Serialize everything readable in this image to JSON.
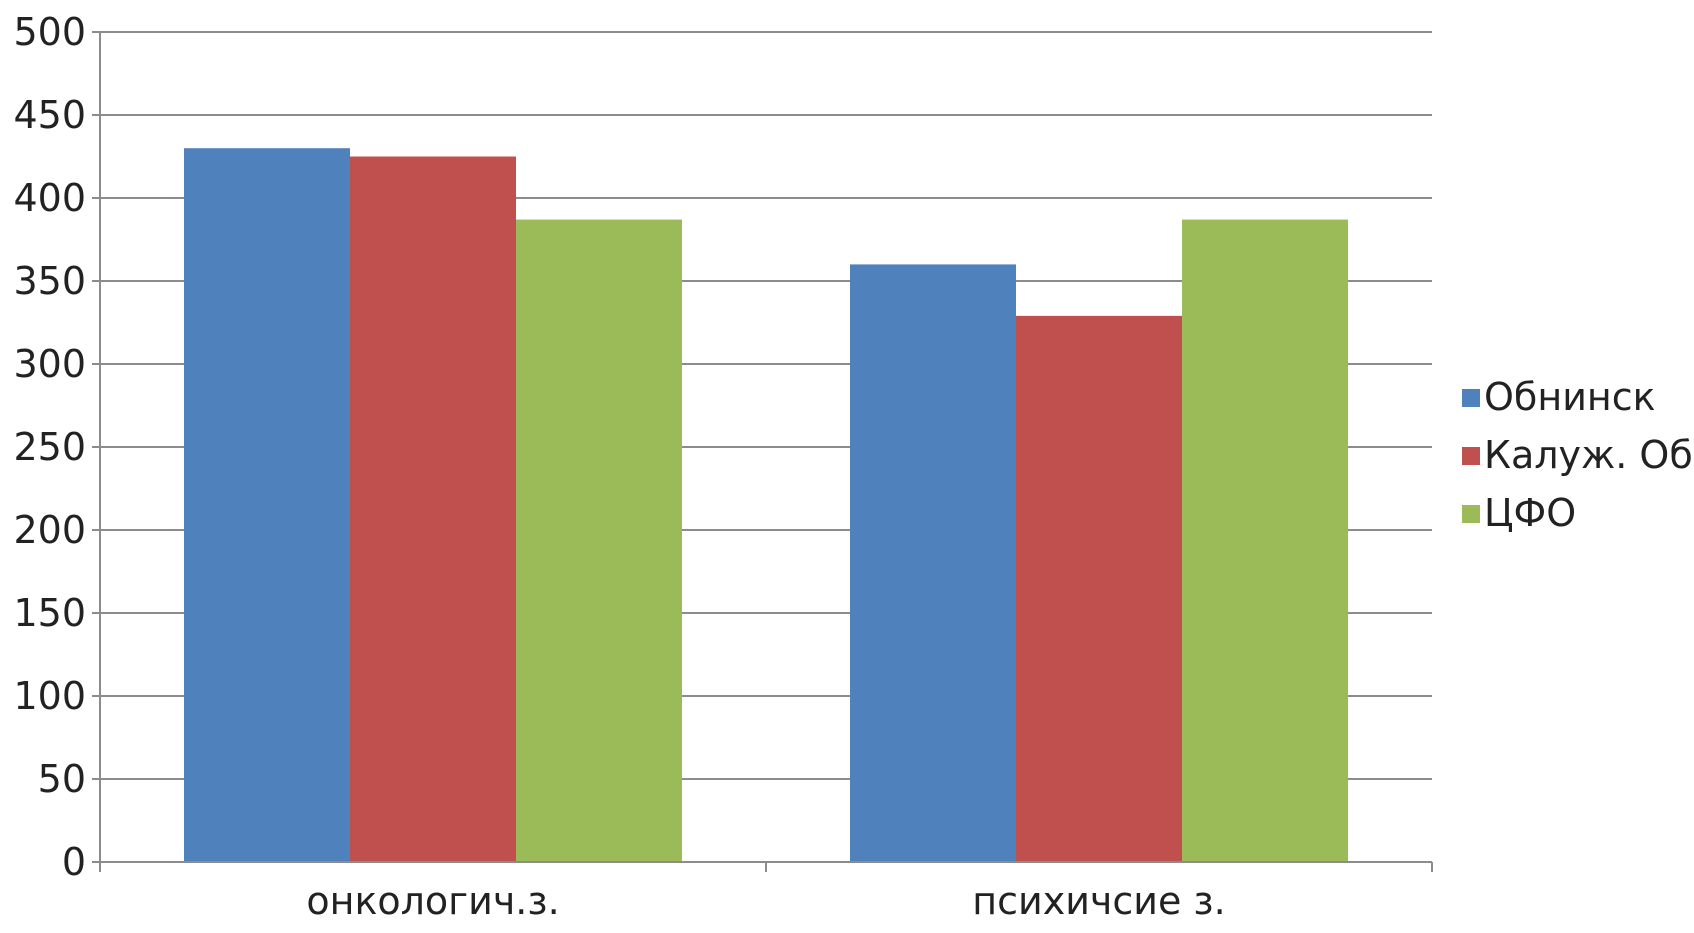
{
  "chart_data": {
    "type": "bar",
    "categories": [
      "онкологич.з.",
      "психичсие з."
    ],
    "series": [
      {
        "name": "Обнинск",
        "values": [
          430,
          360
        ],
        "color": "#4F81BD"
      },
      {
        "name": "Калуж. Об",
        "values": [
          425,
          329
        ],
        "color": "#C0504D"
      },
      {
        "name": "ЦФО",
        "values": [
          387,
          387
        ],
        "color": "#9BBB59"
      }
    ],
    "ylim": [
      0,
      500
    ],
    "yticks": [
      0,
      50,
      100,
      150,
      200,
      250,
      300,
      350,
      400,
      450,
      500
    ],
    "grid": true,
    "legend_position": "right",
    "title": "",
    "xlabel": "",
    "ylabel": ""
  }
}
